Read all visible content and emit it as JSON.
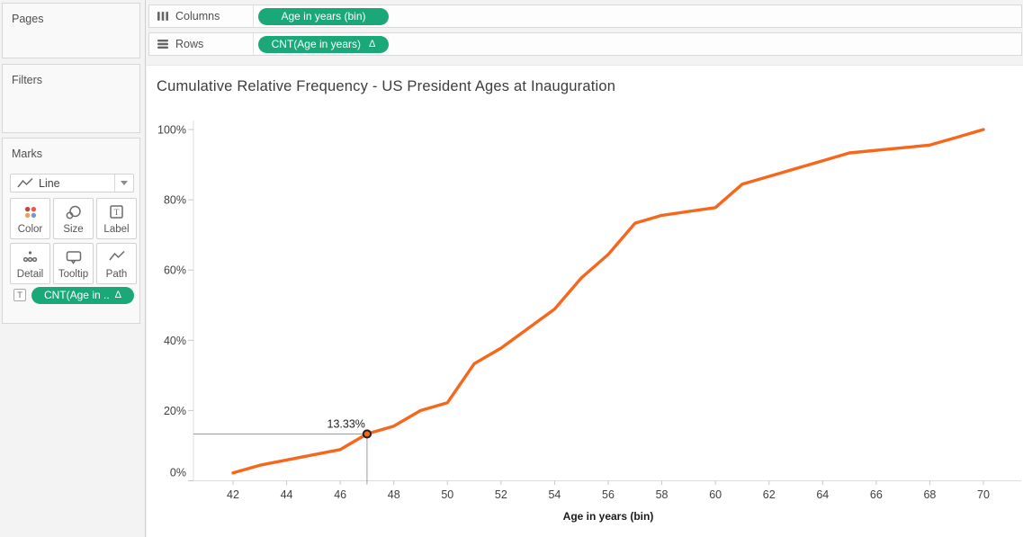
{
  "left_panel": {
    "pages": {
      "label": "Pages"
    },
    "filters": {
      "label": "Filters"
    },
    "marks": {
      "label": "Marks",
      "mark_type": {
        "label": "Line"
      },
      "buttons": [
        {
          "label": "Color"
        },
        {
          "label": "Size"
        },
        {
          "label": "Label"
        },
        {
          "label": "Detail"
        },
        {
          "label": "Tooltip"
        },
        {
          "label": "Path"
        }
      ],
      "pill": {
        "label": "CNT(Age in ..",
        "delta": "Δ"
      }
    }
  },
  "shelves": {
    "columns": {
      "label": "Columns",
      "pill": "Age in years (bin)"
    },
    "rows": {
      "label": "Rows",
      "pill": "CNT(Age in years)",
      "delta": "Δ"
    }
  },
  "colors": {
    "pill_green": "#1BA878",
    "line_orange": "#F6671B",
    "crosshair_gray": "#9b9b9b"
  },
  "chart_data": {
    "type": "line",
    "title": "Cumulative Relative Frequency - US President Ages at Inauguration",
    "xlabel": "Age in years (bin)",
    "ylabel": "",
    "xlim": [
      40.5,
      71.5
    ],
    "ylim": [
      0,
      100
    ],
    "grid": false,
    "legend": false,
    "x_ticks": [
      {
        "v": 42,
        "label": "42"
      },
      {
        "v": 44,
        "label": "44"
      },
      {
        "v": 46,
        "label": "46"
      },
      {
        "v": 48,
        "label": "48"
      },
      {
        "v": 50,
        "label": "50"
      },
      {
        "v": 52,
        "label": "52"
      },
      {
        "v": 54,
        "label": "54"
      },
      {
        "v": 56,
        "label": "56"
      },
      {
        "v": 58,
        "label": "58"
      },
      {
        "v": 60,
        "label": "60"
      },
      {
        "v": 62,
        "label": "62"
      },
      {
        "v": 64,
        "label": "64"
      },
      {
        "v": 66,
        "label": "66"
      },
      {
        "v": 68,
        "label": "68"
      },
      {
        "v": 70,
        "label": "70"
      }
    ],
    "y_ticks": [
      {
        "v": 0,
        "label": "0%"
      },
      {
        "v": 20,
        "label": "20%"
      },
      {
        "v": 40,
        "label": "40%"
      },
      {
        "v": 60,
        "label": "60%"
      },
      {
        "v": 80,
        "label": "80%"
      },
      {
        "v": 100,
        "label": "100%"
      }
    ],
    "series": [
      {
        "name": "CNT(Age in years)",
        "color": "#F6671B",
        "points": [
          [
            42,
            2.22
          ],
          [
            43,
            4.44
          ],
          [
            46,
            8.89
          ],
          [
            47,
            13.33
          ],
          [
            48,
            15.56
          ],
          [
            49,
            20.0
          ],
          [
            50,
            22.22
          ],
          [
            51,
            33.33
          ],
          [
            52,
            37.78
          ],
          [
            54,
            48.89
          ],
          [
            55,
            57.78
          ],
          [
            56,
            64.44
          ],
          [
            57,
            73.33
          ],
          [
            58,
            75.56
          ],
          [
            60,
            77.78
          ],
          [
            61,
            84.44
          ],
          [
            62,
            86.67
          ],
          [
            64,
            91.11
          ],
          [
            65,
            93.33
          ],
          [
            68,
            95.56
          ],
          [
            69,
            97.78
          ],
          [
            70,
            100.0
          ]
        ]
      }
    ],
    "annotation": {
      "x": 47,
      "y": 13.33,
      "label": "13.33%"
    }
  }
}
